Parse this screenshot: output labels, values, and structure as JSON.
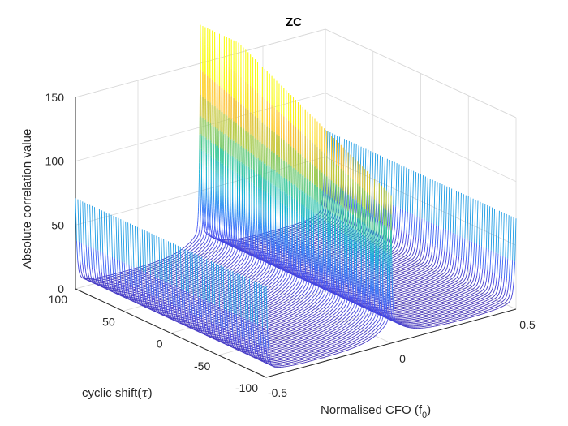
{
  "chart_data": {
    "type": "line",
    "subtype": "3d-waterfall",
    "title": "ZC",
    "xlabel": "Normalised CFO (f",
    "xlabel_sub": "0",
    "xlabel_close": ")",
    "ylabel": "cyclic shift(",
    "ylabel_symbol": "τ",
    "ylabel_close": ")",
    "zlabel": "Absolute correlation value",
    "xlim": [
      -0.5,
      0.5
    ],
    "ylim": [
      -100,
      100
    ],
    "zlim": [
      0,
      150
    ],
    "x_ticks": [
      -0.5,
      0,
      0.5
    ],
    "y_ticks": [
      -100,
      -50,
      0,
      50,
      100
    ],
    "z_ticks": [
      0,
      50,
      100,
      150
    ],
    "x_tick_labels": [
      "-0.5",
      "0",
      "0.5"
    ],
    "y_tick_labels": [
      "-100",
      "-50",
      "0",
      "50",
      "100"
    ],
    "z_tick_labels": [
      "0",
      "50",
      "100",
      "150"
    ],
    "grid": true,
    "colormap": "parula",
    "series_shape": {
      "cyclic_shift_range": [
        -100,
        100
      ],
      "peak_at_cfo": 0,
      "peak_height_at_shift_minus_100": 95,
      "peak_height_at_shift_plus_100": 175,
      "edge_value_at_cfo_minus_0.5": 62,
      "edge_value_at_cfo_plus_0.5": 62,
      "floor_value": 3
    }
  }
}
